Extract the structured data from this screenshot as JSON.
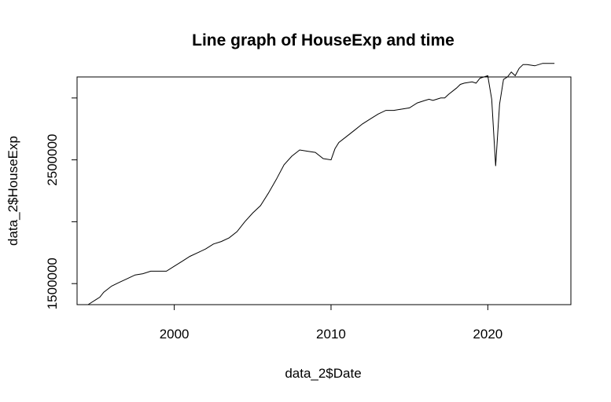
{
  "chart_data": {
    "type": "line",
    "title": "Line graph of HouseExp and time",
    "xlabel": "data_2$Date",
    "ylabel": "data_2$HouseExp",
    "x_ticks": [
      2000,
      2010,
      2020
    ],
    "x_tick_labels": [
      "2000",
      "2010",
      "2020"
    ],
    "y_ticks": [
      1500000,
      2000000,
      2500000,
      3000000
    ],
    "y_tick_labels": [
      "1500000",
      "",
      "2500000",
      ""
    ],
    "xlim": [
      1993.8,
      2025.3
    ],
    "ylim": [
      1330000,
      3170000
    ],
    "grid": false,
    "series": [
      {
        "x": [
          1994.5,
          1995.0,
          1995.25,
          1995.5,
          1996.0,
          1996.5,
          1997.0,
          1997.5,
          1998.0,
          1998.5,
          1999.0,
          1999.5,
          2000.0,
          2000.5,
          2001.0,
          2001.5,
          2002.0,
          2002.5,
          2003.0,
          2003.5,
          2004.0,
          2004.5,
          2005.0,
          2005.5,
          2006.0,
          2006.5,
          2007.0,
          2007.5,
          2008.0,
          2008.5,
          2009.0,
          2009.5,
          2010.0,
          2010.25,
          2010.5,
          2011.0,
          2011.5,
          2012.0,
          2012.5,
          2013.0,
          2013.5,
          2014.0,
          2014.5,
          2015.0,
          2015.5,
          2016.0,
          2016.25,
          2016.5,
          2017.0,
          2017.25,
          2017.5,
          2018.0,
          2018.25,
          2018.5,
          2019.0,
          2019.25,
          2019.5,
          2020.0,
          2020.25,
          2020.5,
          2020.75,
          2021.0,
          2021.25,
          2021.5,
          2021.75,
          2022.0,
          2022.25,
          2022.5,
          2023.0,
          2023.5,
          2024.0,
          2024.25
        ],
        "y": [
          1330000,
          1370000,
          1390000,
          1430000,
          1480000,
          1510000,
          1540000,
          1570000,
          1580000,
          1600000,
          1600000,
          1600000,
          1640000,
          1680000,
          1720000,
          1750000,
          1780000,
          1820000,
          1840000,
          1870000,
          1920000,
          2000000,
          2070000,
          2130000,
          2230000,
          2340000,
          2460000,
          2530000,
          2580000,
          2570000,
          2560000,
          2510000,
          2500000,
          2590000,
          2640000,
          2690000,
          2740000,
          2790000,
          2830000,
          2870000,
          2900000,
          2900000,
          2910000,
          2920000,
          2960000,
          2980000,
          2990000,
          2980000,
          3000000,
          3000000,
          3030000,
          3080000,
          3110000,
          3120000,
          3130000,
          3120000,
          3160000,
          3180000,
          2990000,
          2450000,
          2950000,
          3150000,
          3170000,
          3210000,
          3180000,
          3240000,
          3270000,
          3270000,
          3260000,
          3280000,
          3280000,
          3280000
        ]
      }
    ]
  }
}
